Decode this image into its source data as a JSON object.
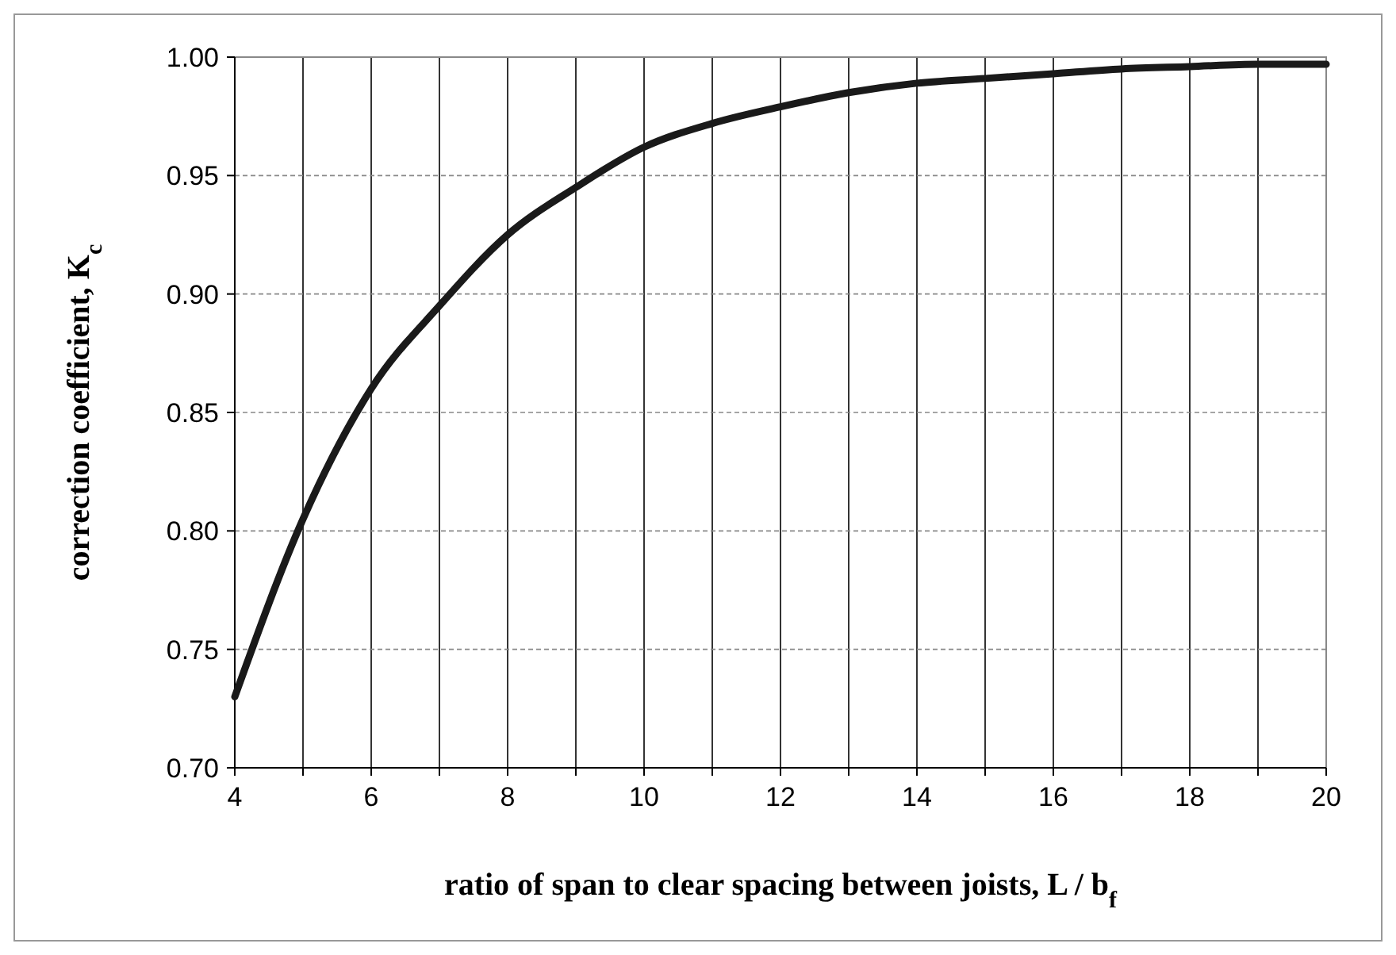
{
  "chart_data": {
    "type": "line",
    "xlabel": "ratio of span to clear spacing between joists, L / b$_{f}$",
    "ylabel": "correction coefficient, K$_{c}$",
    "x": [
      4,
      5,
      6,
      7,
      8,
      9,
      10,
      11,
      12,
      13,
      14,
      15,
      16,
      17,
      18,
      19,
      20
    ],
    "series": [
      {
        "color": "#1a1a1a",
        "values": [
          0.73,
          0.805,
          0.86,
          0.895,
          0.925,
          0.945,
          0.962,
          0.972,
          0.979,
          0.985,
          0.989,
          0.991,
          0.993,
          0.995,
          0.996,
          0.997,
          0.997
        ]
      }
    ],
    "xlim": [
      4,
      20
    ],
    "ylim": [
      0.7,
      1.0
    ],
    "xticks": [
      4,
      {
        "value": 5,
        "label": null
      },
      6,
      {
        "value": 7,
        "label": null
      },
      8,
      {
        "value": 9,
        "label": null
      },
      10,
      {
        "value": 11,
        "label": null
      },
      12,
      {
        "value": 13,
        "label": null
      },
      14,
      {
        "value": 15,
        "label": null
      },
      16,
      {
        "value": 17,
        "label": null
      },
      18,
      {
        "value": 19,
        "label": null
      },
      20
    ],
    "yticks": [
      {
        "value": 0.7,
        "label": "0.70"
      },
      {
        "value": 0.75,
        "label": "0.75"
      },
      {
        "value": 0.8,
        "label": "0.80"
      },
      {
        "value": 0.85,
        "label": "0.85"
      },
      {
        "value": 0.9,
        "label": "0.90"
      },
      {
        "value": 0.95,
        "label": "0.95"
      },
      {
        "value": 1.0,
        "label": "1.00"
      }
    ],
    "grid": true,
    "marker": "none",
    "line_style": "solid"
  }
}
